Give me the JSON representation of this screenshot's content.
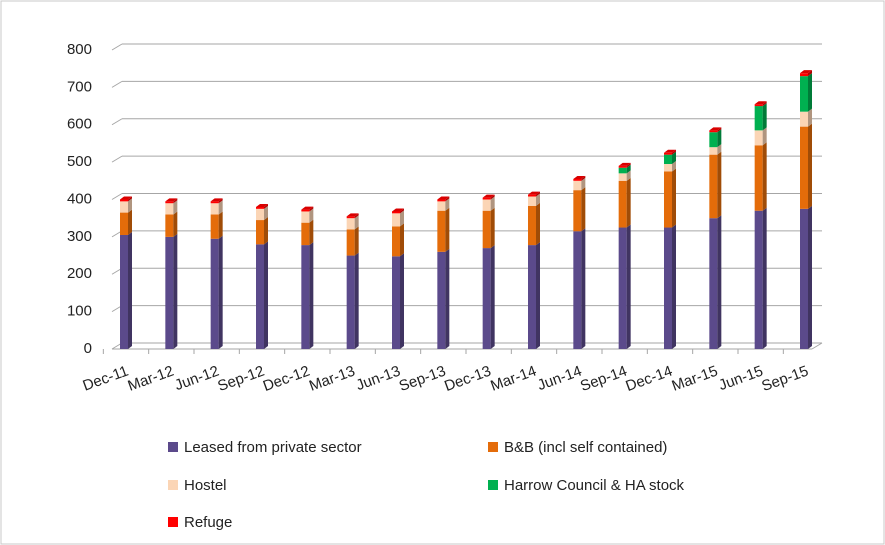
{
  "chart_data": {
    "type": "bar",
    "stacked": true,
    "categories": [
      "Dec-11",
      "Mar-12",
      "Jun-12",
      "Sep-12",
      "Dec-12",
      "Mar-13",
      "Jun-13",
      "Sep-13",
      "Dec-13",
      "Mar-14",
      "Jun-14",
      "Sep-14",
      "Dec-14",
      "Mar-15",
      "Jun-15",
      "Sep-15"
    ],
    "series": [
      {
        "name": "Leased from private sector",
        "color": "#5b4a8b",
        "values": [
          305,
          300,
          295,
          280,
          278,
          250,
          248,
          260,
          270,
          278,
          315,
          325,
          325,
          350,
          370,
          375
        ]
      },
      {
        "name": "B&B (incl self contained)",
        "color": "#e46c0a",
        "values": [
          60,
          60,
          65,
          65,
          60,
          70,
          80,
          110,
          100,
          105,
          110,
          125,
          150,
          170,
          175,
          220
        ]
      },
      {
        "name": "Hostel",
        "color": "#fbd5b5",
        "values": [
          30,
          30,
          30,
          30,
          30,
          30,
          35,
          25,
          30,
          25,
          25,
          20,
          20,
          20,
          40,
          40
        ]
      },
      {
        "name": "Harrow Council & HA stock",
        "color": "#00b050",
        "values": [
          0,
          0,
          0,
          0,
          0,
          0,
          0,
          0,
          0,
          0,
          0,
          15,
          25,
          40,
          65,
          95
        ]
      },
      {
        "name": "Refuge",
        "color": "#ff0000",
        "values": [
          5,
          5,
          5,
          5,
          5,
          5,
          5,
          5,
          5,
          5,
          5,
          5,
          5,
          5,
          5,
          8
        ]
      }
    ],
    "ylim": [
      0,
      800
    ],
    "yticks": [
      0,
      100,
      200,
      300,
      400,
      500,
      600,
      700,
      800
    ],
    "grid": true
  }
}
